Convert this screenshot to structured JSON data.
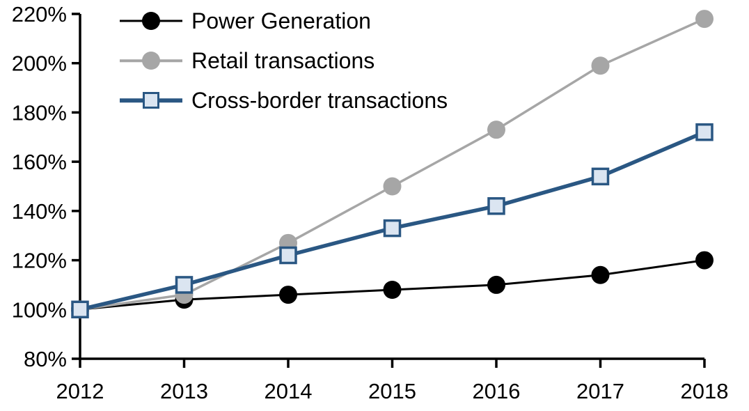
{
  "chart_data": {
    "type": "line",
    "title": "",
    "xlabel": "",
    "ylabel": "",
    "x": [
      "2012",
      "2013",
      "2014",
      "2015",
      "2016",
      "2017",
      "2018"
    ],
    "xtick_labels": [
      "2012",
      "2013",
      "2014",
      "2015",
      "2016",
      "2017",
      "2018"
    ],
    "yticks": [
      80,
      100,
      120,
      140,
      160,
      180,
      200,
      220
    ],
    "ytick_labels": [
      "80%",
      "100%",
      "120%",
      "140%",
      "160%",
      "180%",
      "200%",
      "220%"
    ],
    "ytick_suffix": "%",
    "ylim": [
      80,
      220
    ],
    "grid": false,
    "legend_position": "top-left",
    "axis_color": "#000000",
    "background_color": "#FFFFFF",
    "series": [
      {
        "name": "Power Generation",
        "values": [
          100,
          104,
          106,
          108,
          110,
          114,
          120
        ],
        "color": "#000000",
        "marker": "circle",
        "marker_fill": "#000000",
        "line_width": 3
      },
      {
        "name": "Retail transactions",
        "values": [
          100,
          106,
          127,
          150,
          173,
          199,
          218
        ],
        "color": "#A6A6A6",
        "marker": "circle",
        "marker_fill": "#A6A6A6",
        "line_width": 3.5
      },
      {
        "name": "Cross-border transactions",
        "values": [
          100,
          110,
          122,
          133,
          142,
          154,
          172
        ],
        "color": "#2A5783",
        "marker": "square",
        "marker_fill": "#DBE5F1",
        "line_width": 5.5
      }
    ]
  }
}
